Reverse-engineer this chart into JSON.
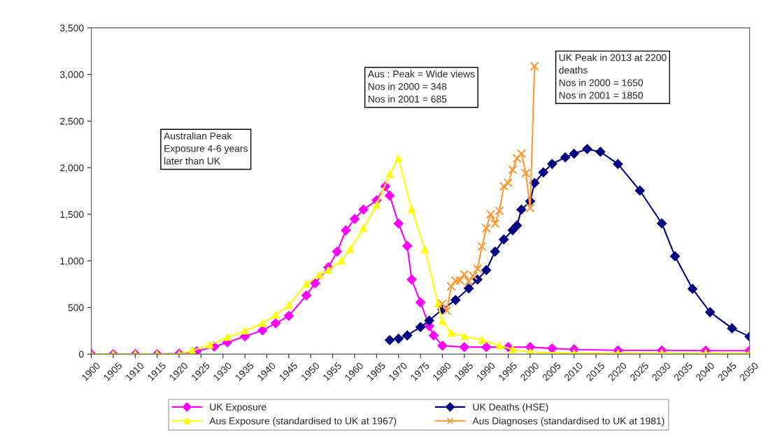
{
  "chart_data": {
    "type": "line",
    "xlim": [
      1900,
      2050
    ],
    "xticks": [
      1900,
      1905,
      1910,
      1915,
      1920,
      1925,
      1930,
      1935,
      1940,
      1945,
      1950,
      1955,
      1960,
      1965,
      1970,
      1975,
      1980,
      1985,
      1990,
      1995,
      2000,
      2005,
      2010,
      2015,
      2020,
      2025,
      2030,
      2035,
      2040,
      2045,
      2050
    ],
    "ylim": [
      0,
      3500
    ],
    "yticks": [
      {
        "value": 0,
        "label": "0"
      },
      {
        "value": 500,
        "label": "500"
      },
      {
        "value": 1000,
        "label": "1,000"
      },
      {
        "value": 1500,
        "label": "1,500"
      },
      {
        "value": 2000,
        "label": "2,000"
      },
      {
        "value": 2500,
        "label": "2,500"
      },
      {
        "value": 3000,
        "label": "3,000"
      },
      {
        "value": 3500,
        "label": "3,500"
      }
    ],
    "grid": false,
    "legend": "bottom",
    "series": [
      {
        "name": "UK Exposure",
        "color": "#ff00ff",
        "marker": "diamond",
        "x": [
          1900,
          1905,
          1910,
          1915,
          1920,
          1924,
          1928,
          1931,
          1935,
          1939,
          1942,
          1945,
          1949,
          1951,
          1954,
          1956,
          1958,
          1960,
          1962,
          1965,
          1967,
          1968,
          1970,
          1972,
          1973,
          1975,
          1977,
          1978,
          1980,
          1985,
          1990,
          1995,
          2000,
          2005,
          2010,
          2020,
          2030,
          2040,
          2050
        ],
        "values": [
          0,
          0,
          0,
          0,
          5,
          30,
          80,
          127,
          190,
          255,
          330,
          410,
          630,
          760,
          930,
          1100,
          1327,
          1450,
          1550,
          1650,
          1800,
          1700,
          1400,
          1160,
          800,
          555,
          300,
          200,
          90,
          75,
          75,
          75,
          75,
          60,
          50,
          40,
          40,
          37,
          37
        ]
      },
      {
        "name": "UK Deaths (HSE)",
        "color": "#000080",
        "marker": "diamond",
        "x": [
          1968,
          1970,
          1972,
          1975,
          1977,
          1980,
          1983,
          1986,
          1988,
          1990,
          1992,
          1994,
          1996,
          1997,
          1998,
          2000,
          2001,
          2003,
          2005,
          2008,
          2010,
          2013,
          2016,
          2020,
          2025,
          2030,
          2033,
          2037,
          2041,
          2046,
          2050
        ],
        "values": [
          150,
          165,
          200,
          290,
          360,
          480,
          580,
          705,
          800,
          900,
          1100,
          1230,
          1330,
          1380,
          1550,
          1640,
          1836,
          1950,
          2040,
          2110,
          2150,
          2200,
          2170,
          2039,
          1754,
          1402,
          1050,
          700,
          450,
          277,
          187
        ]
      },
      {
        "name": "Aus Exposure (standardised to UK at 1967)",
        "color": "#ffff00",
        "marker": "triangle",
        "x": [
          1900,
          1905,
          1910,
          1915,
          1920,
          1923,
          1927,
          1931,
          1935,
          1939,
          1942,
          1945,
          1949,
          1952,
          1954,
          1957,
          1959,
          1962,
          1965,
          1968,
          1970,
          1973,
          1976,
          1979,
          1980,
          1982,
          1985,
          1989,
          1993,
          1996,
          2000,
          2010,
          2020,
          2030,
          2040,
          2050
        ],
        "values": [
          0,
          0,
          0,
          0,
          0,
          37,
          100,
          180,
          250,
          330,
          420,
          525,
          750,
          850,
          900,
          1000,
          1125,
          1350,
          1600,
          1930,
          2099,
          1552,
          1124,
          540,
          352,
          225,
          190,
          150,
          90,
          52,
          20,
          10,
          10,
          10,
          10,
          10
        ]
      },
      {
        "name": "Aus Diagnoses (standardised to UK at 1981)",
        "color": "#ff9933",
        "marker": "cross",
        "x": [
          1980,
          1981,
          1982,
          1983,
          1984,
          1985,
          1986,
          1987,
          1988,
          1989,
          1990,
          1991,
          1992,
          1993,
          1994,
          1995,
          1996,
          1997,
          1998,
          1999,
          2000,
          2001
        ],
        "values": [
          540,
          465,
          727,
          787,
          790,
          855,
          780,
          840,
          915,
          1155,
          1350,
          1500,
          1400,
          1537,
          1800,
          1836,
          1978,
          2100,
          2151,
          1941,
          1567,
          3088
        ]
      }
    ],
    "annotations": [
      "Australian Peak\nExposure 4-6 years\nlater than UK",
      "Aus : Peak = Wide views\nNos in 2000 = 348\nNos in 2001 = 685",
      "UK Peak in 2013 at 2200\ndeaths\nNos in 2000 = 1650\nNos in 2001 = 1850"
    ]
  }
}
